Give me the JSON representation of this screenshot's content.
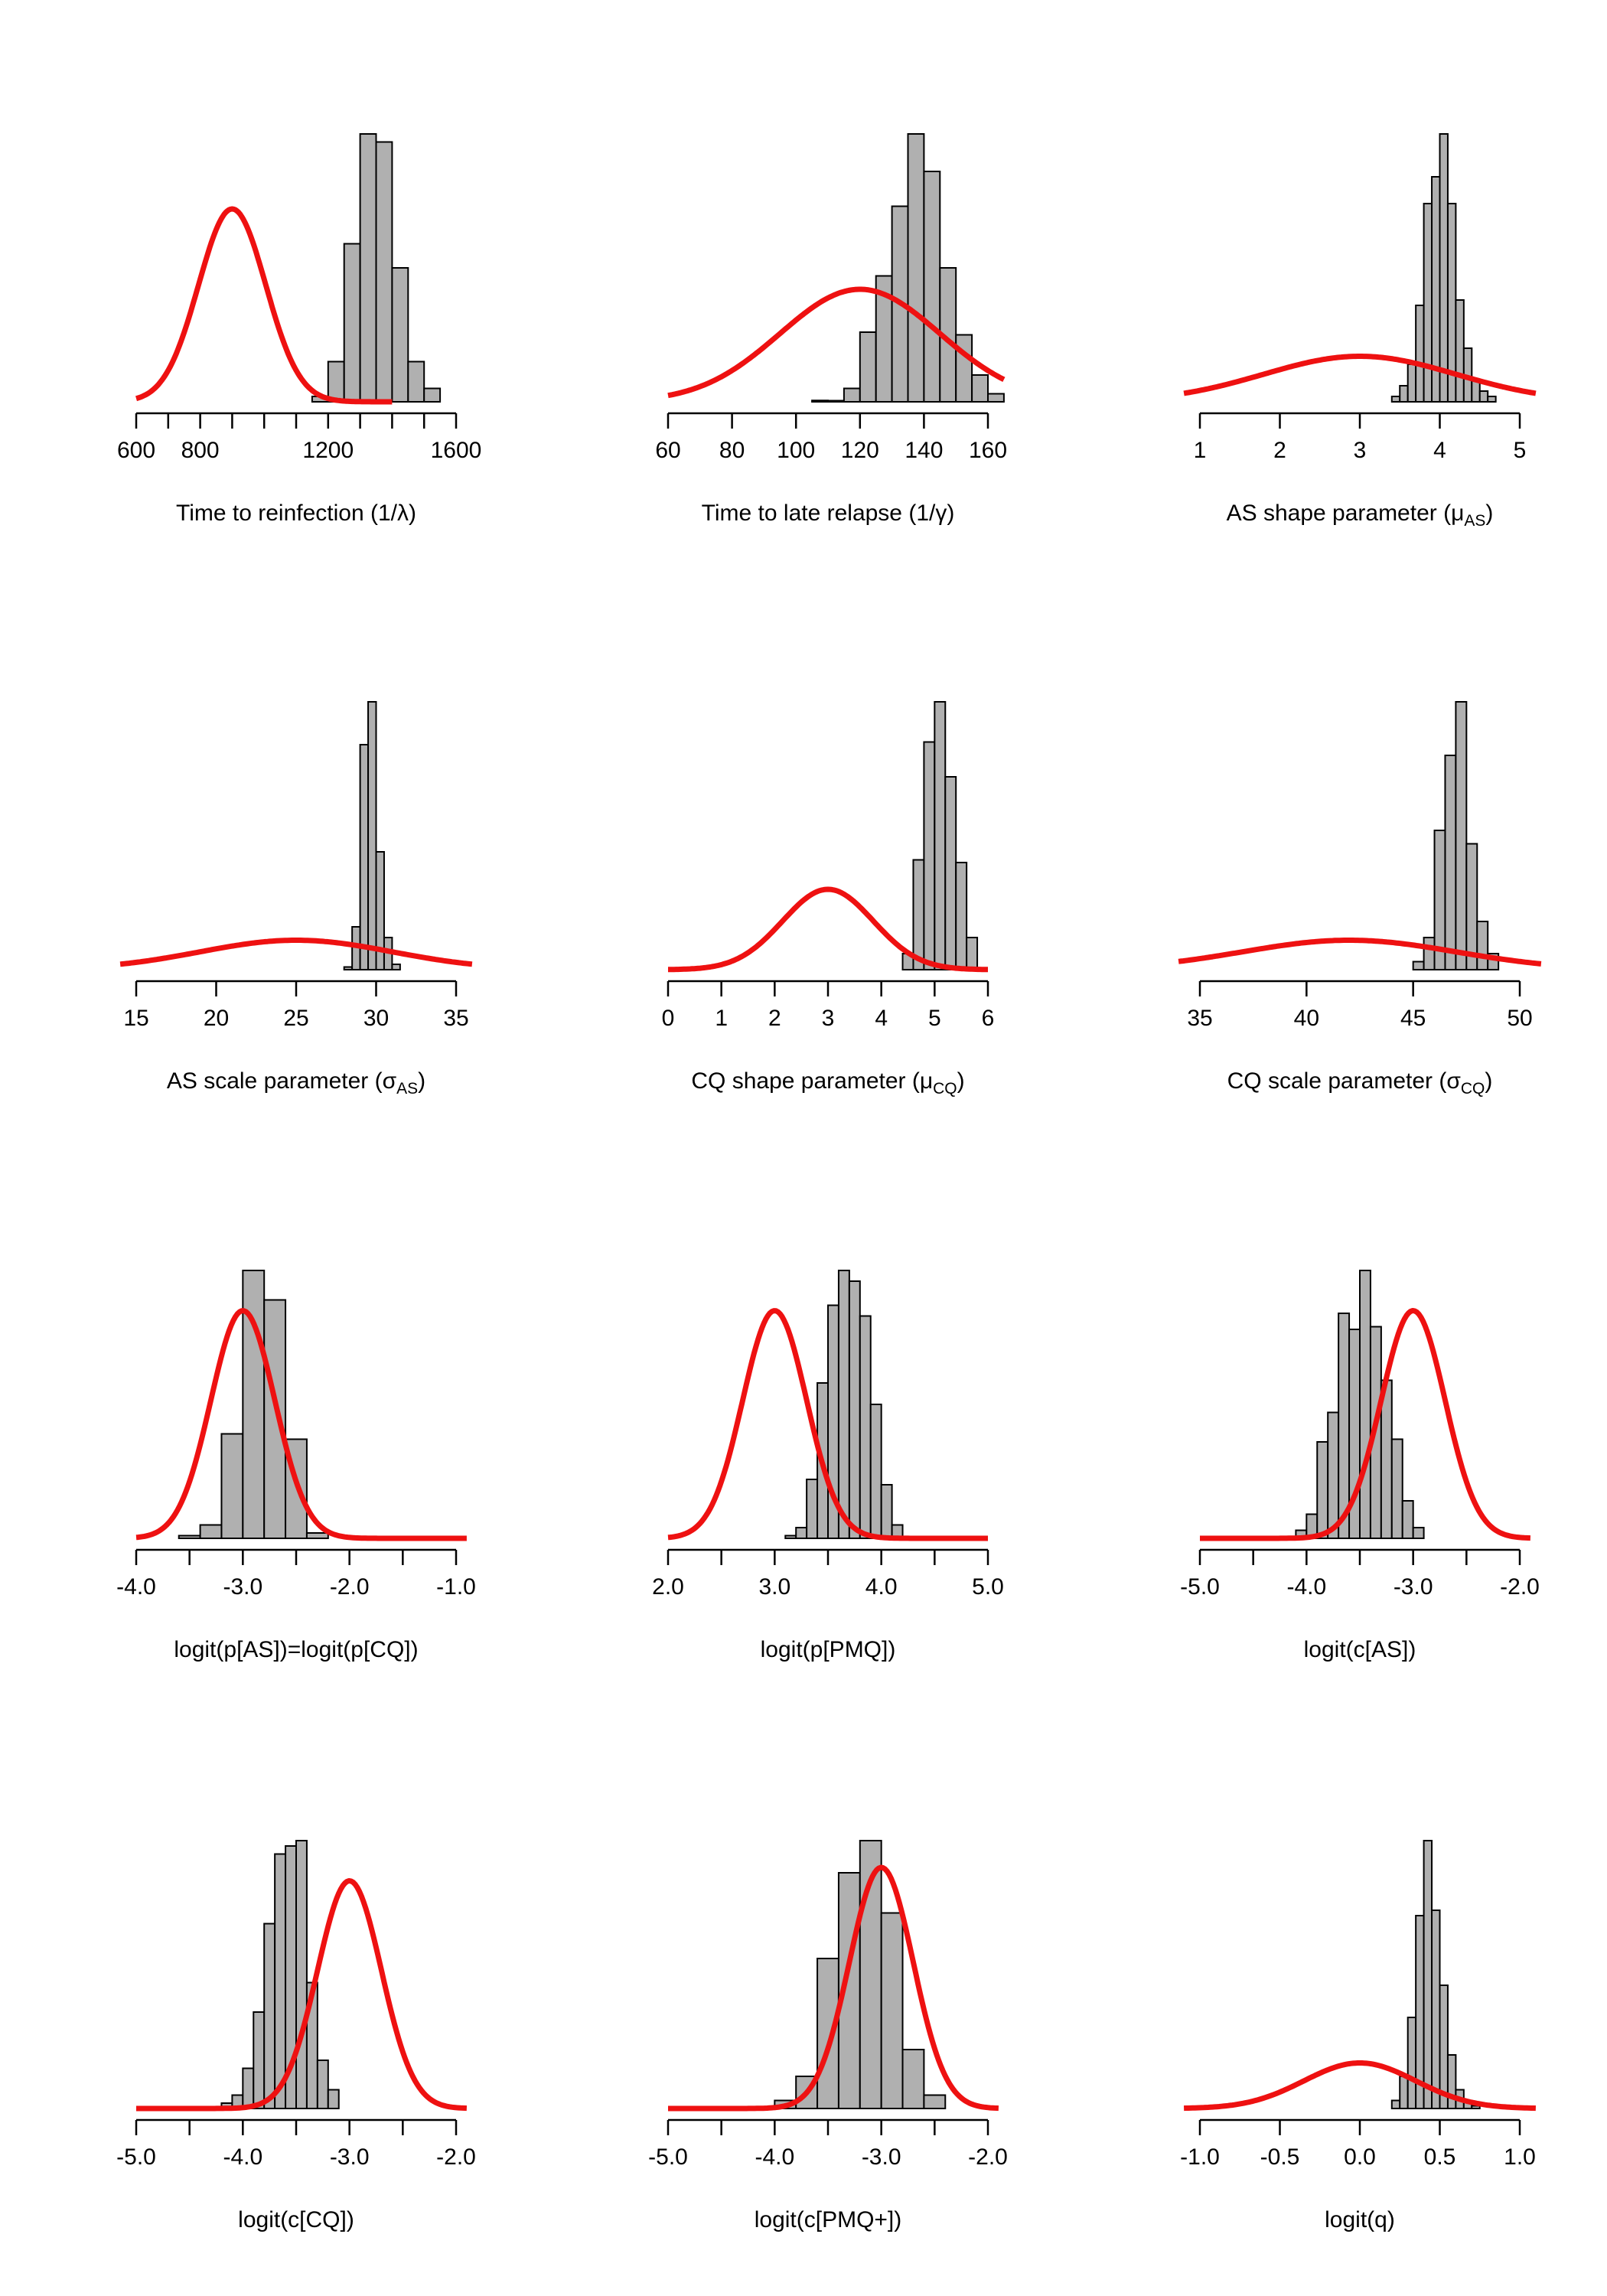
{
  "chart_data": [
    {
      "type": "bar",
      "xlabel": "Time to reinfection (1/λ)",
      "xlim": [
        600,
        1600
      ],
      "tick_values": [
        600,
        700,
        800,
        900,
        1000,
        1100,
        1200,
        1300,
        1400,
        1500,
        1600
      ],
      "tick_labels": [
        {
          "v": 600,
          "t": "600"
        },
        {
          "v": 800,
          "t": "800"
        },
        {
          "v": 1200,
          "t": "1200"
        },
        {
          "v": 1600,
          "t": "1600"
        }
      ],
      "hist": {
        "bin_width": 50,
        "edges": [
          1150,
          1200,
          1250,
          1300,
          1350,
          1400,
          1450,
          1500,
          1550
        ],
        "heights": [
          0.02,
          0.15,
          0.59,
          1.0,
          0.97,
          0.5,
          0.15,
          0.05
        ]
      },
      "prior": {
        "mean": 900,
        "sd": 105,
        "from": 600,
        "to": 1400,
        "peak": 0.72
      },
      "colors": {
        "hist_fill": "#b0b0b0",
        "prior_line": "#ee1111"
      }
    },
    {
      "type": "bar",
      "xlabel": "Time to late relapse (1/γ)",
      "xlim": [
        60,
        160
      ],
      "tick_values": [
        60,
        80,
        100,
        120,
        140,
        160
      ],
      "tick_labels": [
        {
          "v": 60,
          "t": "60"
        },
        {
          "v": 80,
          "t": "80"
        },
        {
          "v": 100,
          "t": "100"
        },
        {
          "v": 120,
          "t": "120"
        },
        {
          "v": 140,
          "t": "140"
        },
        {
          "v": 160,
          "t": "160"
        }
      ],
      "hist": {
        "bin_width": 5,
        "edges": [
          105,
          110,
          115,
          120,
          125,
          130,
          135,
          140,
          145,
          150,
          155,
          160,
          165
        ],
        "heights": [
          0.005,
          0.0,
          0.05,
          0.26,
          0.47,
          0.73,
          1.0,
          0.86,
          0.5,
          0.25,
          0.1,
          0.03
        ]
      },
      "prior": {
        "mean": 120,
        "sd": 25,
        "from": 60,
        "to": 165,
        "peak": 0.42
      },
      "colors": {
        "hist_fill": "#b0b0b0",
        "prior_line": "#ee1111"
      }
    },
    {
      "type": "bar",
      "xlabel": "AS shape parameter (μAS)",
      "xlim": [
        1,
        5
      ],
      "tick_values": [
        1,
        2,
        3,
        4,
        5
      ],
      "tick_labels": [
        {
          "v": 1,
          "t": "1"
        },
        {
          "v": 2,
          "t": "2"
        },
        {
          "v": 3,
          "t": "3"
        },
        {
          "v": 4,
          "t": "4"
        },
        {
          "v": 5,
          "t": "5"
        }
      ],
      "hist": {
        "bin_width": 0.1,
        "edges": [
          3.4,
          3.5,
          3.6,
          3.7,
          3.8,
          3.9,
          4.0,
          4.1,
          4.2,
          4.3,
          4.4,
          4.5,
          4.6,
          4.7
        ],
        "heights": [
          0.02,
          0.06,
          0.14,
          0.36,
          0.74,
          0.84,
          1.0,
          0.74,
          0.38,
          0.2,
          0.08,
          0.04,
          0.02
        ]
      },
      "prior": {
        "mean": 3,
        "sd": 1.2,
        "from": 0.8,
        "to": 5.2,
        "peak": 0.17
      },
      "colors": {
        "hist_fill": "#b0b0b0",
        "prior_line": "#ee1111"
      }
    },
    {
      "type": "bar",
      "xlabel": "AS scale parameter (σAS)",
      "xlim": [
        15,
        35
      ],
      "tick_values": [
        15,
        20,
        25,
        30,
        35
      ],
      "tick_labels": [
        {
          "v": 15,
          "t": "15"
        },
        {
          "v": 20,
          "t": "20"
        },
        {
          "v": 25,
          "t": "25"
        },
        {
          "v": 30,
          "t": "30"
        },
        {
          "v": 35,
          "t": "35"
        }
      ],
      "hist": {
        "bin_width": 0.5,
        "edges": [
          28,
          28.5,
          29,
          29.5,
          30,
          30.5,
          31,
          31.5
        ],
        "heights": [
          0.01,
          0.16,
          0.84,
          1.0,
          0.44,
          0.12,
          0.02
        ]
      },
      "prior": {
        "mean": 25,
        "sd": 6,
        "from": 14,
        "to": 36,
        "peak": 0.11
      },
      "colors": {
        "hist_fill": "#b0b0b0",
        "prior_line": "#ee1111"
      }
    },
    {
      "type": "bar",
      "xlabel": "CQ shape parameter (μCQ)",
      "xlim": [
        0,
        6
      ],
      "tick_values": [
        0,
        1,
        2,
        3,
        4,
        5,
        6
      ],
      "tick_labels": [
        {
          "v": 0,
          "t": "0"
        },
        {
          "v": 1,
          "t": "1"
        },
        {
          "v": 2,
          "t": "2"
        },
        {
          "v": 3,
          "t": "3"
        },
        {
          "v": 4,
          "t": "4"
        },
        {
          "v": 5,
          "t": "5"
        },
        {
          "v": 6,
          "t": "6"
        }
      ],
      "hist": {
        "bin_width": 0.2,
        "edges": [
          4.4,
          4.6,
          4.8,
          5.0,
          5.2,
          5.4,
          5.6,
          5.8
        ],
        "heights": [
          0.06,
          0.41,
          0.85,
          1.0,
          0.72,
          0.4,
          0.12
        ]
      },
      "prior": {
        "mean": 3,
        "sd": 0.85,
        "from": 0,
        "to": 6,
        "peak": 0.3
      },
      "colors": {
        "hist_fill": "#b0b0b0",
        "prior_line": "#ee1111"
      }
    },
    {
      "type": "bar",
      "xlabel": "CQ scale parameter (σCQ)",
      "xlim": [
        35,
        50
      ],
      "tick_values": [
        35,
        40,
        45,
        50
      ],
      "tick_labels": [
        {
          "v": 35,
          "t": "35"
        },
        {
          "v": 40,
          "t": "40"
        },
        {
          "v": 45,
          "t": "45"
        },
        {
          "v": 50,
          "t": "50"
        }
      ],
      "hist": {
        "bin_width": 0.5,
        "edges": [
          45,
          45.5,
          46,
          46.5,
          47,
          47.5,
          48,
          48.5,
          49
        ],
        "heights": [
          0.03,
          0.12,
          0.52,
          0.8,
          1.0,
          0.47,
          0.18,
          0.06
        ]
      },
      "prior": {
        "mean": 42,
        "sd": 5,
        "from": 34,
        "to": 51,
        "peak": 0.11
      },
      "colors": {
        "hist_fill": "#b0b0b0",
        "prior_line": "#ee1111"
      }
    },
    {
      "type": "bar",
      "xlabel": "logit(p[AS])=logit(p[CQ])",
      "xlim": [
        -4.0,
        -1.0
      ],
      "tick_values": [
        -4.0,
        -3.5,
        -3.0,
        -2.5,
        -2.0,
        -1.5,
        -1.0
      ],
      "tick_labels": [
        {
          "v": -4.0,
          "t": "-4.0"
        },
        {
          "v": -3.0,
          "t": "-3.0"
        },
        {
          "v": -2.0,
          "t": "-2.0"
        },
        {
          "v": -1.0,
          "t": "-1.0"
        }
      ],
      "hist": {
        "bin_width": 0.2,
        "edges": [
          -3.6,
          -3.4,
          -3.2,
          -3.0,
          -2.8,
          -2.6,
          -2.4,
          -2.2
        ],
        "heights": [
          0.01,
          0.05,
          0.39,
          1.0,
          0.89,
          0.37,
          0.02
        ]
      },
      "prior": {
        "mean": -3.0,
        "sd": 0.3,
        "from": -4.0,
        "to": -0.9,
        "peak": 0.85
      },
      "colors": {
        "hist_fill": "#b0b0b0",
        "prior_line": "#ee1111"
      }
    },
    {
      "type": "bar",
      "xlabel": "logit(p[PMQ])",
      "xlim": [
        2.0,
        5.0
      ],
      "tick_values": [
        2.0,
        2.5,
        3.0,
        3.5,
        4.0,
        4.5,
        5.0
      ],
      "tick_labels": [
        {
          "v": 2.0,
          "t": "2.0"
        },
        {
          "v": 3.0,
          "t": "3.0"
        },
        {
          "v": 4.0,
          "t": "4.0"
        },
        {
          "v": 5.0,
          "t": "5.0"
        }
      ],
      "hist": {
        "bin_width": 0.1,
        "edges": [
          3.1,
          3.2,
          3.3,
          3.4,
          3.5,
          3.6,
          3.7,
          3.8,
          3.9,
          4.0,
          4.1,
          4.2
        ],
        "heights": [
          0.01,
          0.04,
          0.22,
          0.58,
          0.87,
          1.0,
          0.96,
          0.83,
          0.5,
          0.2,
          0.05
        ]
      },
      "prior": {
        "mean": 3.0,
        "sd": 0.3,
        "from": 2.0,
        "to": 5.0,
        "peak": 0.85
      },
      "colors": {
        "hist_fill": "#b0b0b0",
        "prior_line": "#ee1111"
      }
    },
    {
      "type": "bar",
      "xlabel": "logit(c[AS])",
      "xlim": [
        -5.0,
        -2.0
      ],
      "tick_values": [
        -5.0,
        -4.5,
        -4.0,
        -3.5,
        -3.0,
        -2.5,
        -2.0
      ],
      "tick_labels": [
        {
          "v": -5.0,
          "t": "-5.0"
        },
        {
          "v": -4.0,
          "t": "-4.0"
        },
        {
          "v": -3.0,
          "t": "-3.0"
        },
        {
          "v": -2.0,
          "t": "-2.0"
        }
      ],
      "hist": {
        "bin_width": 0.1,
        "edges": [
          -4.1,
          -4.0,
          -3.9,
          -3.8,
          -3.7,
          -3.6,
          -3.5,
          -3.4,
          -3.3,
          -3.2,
          -3.1,
          -3.0,
          -2.9
        ],
        "heights": [
          0.03,
          0.09,
          0.36,
          0.47,
          0.84,
          0.78,
          1.0,
          0.79,
          0.59,
          0.37,
          0.14,
          0.04
        ]
      },
      "prior": {
        "mean": -3.0,
        "sd": 0.3,
        "from": -5.0,
        "to": -1.9,
        "peak": 0.85
      },
      "colors": {
        "hist_fill": "#b0b0b0",
        "prior_line": "#ee1111"
      }
    },
    {
      "type": "bar",
      "xlabel": "logit(c[CQ])",
      "xlim": [
        -5.0,
        -2.0
      ],
      "tick_values": [
        -5.0,
        -4.5,
        -4.0,
        -3.5,
        -3.0,
        -2.5,
        -2.0
      ],
      "tick_labels": [
        {
          "v": -5.0,
          "t": "-5.0"
        },
        {
          "v": -4.0,
          "t": "-4.0"
        },
        {
          "v": -3.0,
          "t": "-3.0"
        },
        {
          "v": -2.0,
          "t": "-2.0"
        }
      ],
      "hist": {
        "bin_width": 0.1,
        "edges": [
          -4.3,
          -4.2,
          -4.1,
          -4.0,
          -3.9,
          -3.8,
          -3.7,
          -3.6,
          -3.5,
          -3.4,
          -3.3,
          -3.2,
          -3.1
        ],
        "heights": [
          0.005,
          0.02,
          0.05,
          0.15,
          0.36,
          0.69,
          0.95,
          0.98,
          1.0,
          0.47,
          0.18,
          0.07
        ]
      },
      "prior": {
        "mean": -3.0,
        "sd": 0.3,
        "from": -5.0,
        "to": -1.9,
        "peak": 0.85
      },
      "colors": {
        "hist_fill": "#b0b0b0",
        "prior_line": "#ee1111"
      }
    },
    {
      "type": "bar",
      "xlabel": "logit(c[PMQ+])",
      "xlim": [
        -5.0,
        -2.0
      ],
      "tick_values": [
        -5.0,
        -4.5,
        -4.0,
        -3.5,
        -3.0,
        -2.5,
        -2.0
      ],
      "tick_labels": [
        {
          "v": -5.0,
          "t": "-5.0"
        },
        {
          "v": -4.0,
          "t": "-4.0"
        },
        {
          "v": -3.0,
          "t": "-3.0"
        },
        {
          "v": -2.0,
          "t": "-2.0"
        }
      ],
      "hist": {
        "bin_width": 0.2,
        "edges": [
          -4.0,
          -3.8,
          -3.6,
          -3.4,
          -3.2,
          -3.0,
          -2.8,
          -2.6,
          -2.4
        ],
        "heights": [
          0.03,
          0.12,
          0.56,
          0.88,
          1.0,
          0.73,
          0.22,
          0.05
        ]
      },
      "prior": {
        "mean": -3.0,
        "sd": 0.3,
        "from": -5.0,
        "to": -1.9,
        "peak": 0.9
      },
      "colors": {
        "hist_fill": "#b0b0b0",
        "prior_line": "#ee1111"
      }
    },
    {
      "type": "bar",
      "xlabel": "logit(q)",
      "xlim": [
        -1.0,
        1.0
      ],
      "tick_values": [
        -1.0,
        -0.5,
        0.0,
        0.5,
        1.0
      ],
      "tick_labels": [
        {
          "v": -1.0,
          "t": "-1.0"
        },
        {
          "v": -0.5,
          "t": "-0.5"
        },
        {
          "v": 0.0,
          "t": "0.0"
        },
        {
          "v": 0.5,
          "t": "0.5"
        },
        {
          "v": 1.0,
          "t": "1.0"
        }
      ],
      "hist": {
        "bin_width": 0.05,
        "edges": [
          0.2,
          0.25,
          0.3,
          0.35,
          0.4,
          0.45,
          0.5,
          0.55,
          0.6,
          0.65,
          0.7,
          0.75
        ],
        "heights": [
          0.03,
          0.12,
          0.34,
          0.72,
          1.0,
          0.74,
          0.46,
          0.2,
          0.07,
          0.03,
          0.01
        ]
      },
      "prior": {
        "mean": 0.0,
        "sd": 0.35,
        "from": -1.1,
        "to": 1.1,
        "peak": 0.17
      },
      "colors": {
        "hist_fill": "#b0b0b0",
        "prior_line": "#ee1111"
      }
    }
  ]
}
